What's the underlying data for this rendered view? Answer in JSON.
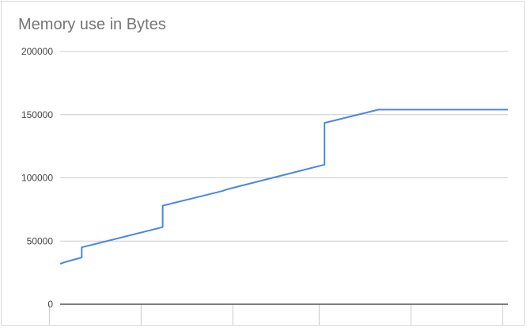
{
  "chart_data": {
    "type": "line",
    "title": "Memory use in Bytes",
    "xlabel": "",
    "ylabel": "",
    "ylim": [
      0,
      200000
    ],
    "yticks": [
      "0",
      "50000",
      "100000",
      "150000",
      "200000"
    ],
    "grid": true,
    "legend": "none",
    "series": [
      {
        "color": "#4a86e8",
        "points": [
          {
            "x": 0,
            "y": 32000
          },
          {
            "x": 1,
            "y": 33500
          },
          {
            "x": 4,
            "y": 37000
          },
          {
            "x": 4,
            "y": 45000
          },
          {
            "x": 19,
            "y": 61000
          },
          {
            "x": 19,
            "y": 78000
          },
          {
            "x": 30,
            "y": 89500
          },
          {
            "x": 31,
            "y": 91000
          },
          {
            "x": 49,
            "y": 110500
          },
          {
            "x": 49,
            "y": 143500
          },
          {
            "x": 59,
            "y": 154000
          },
          {
            "x": 83,
            "y": 154000
          }
        ]
      }
    ],
    "xlim": [
      0,
      83
    ],
    "x_gridlines": [
      -2,
      15,
      32,
      48,
      65,
      82
    ]
  }
}
